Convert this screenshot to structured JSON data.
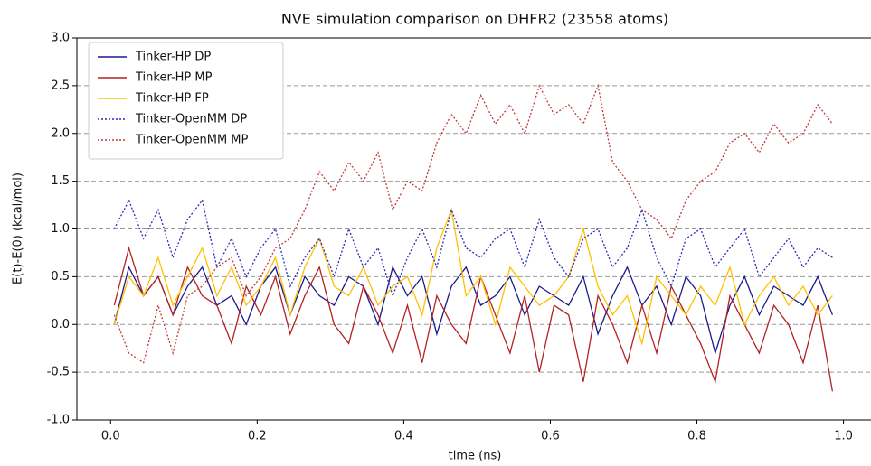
{
  "chart_data": {
    "type": "line",
    "title": "NVE simulation comparison on DHFR2 (23558 atoms)",
    "x_label": "time  (ns)",
    "y_label": "E(t)-E(0) (kcal/mol)",
    "x": [
      0.005,
      0.025,
      0.045,
      0.065,
      0.085,
      0.105,
      0.125,
      0.145,
      0.165,
      0.185,
      0.205,
      0.225,
      0.245,
      0.265,
      0.285,
      0.305,
      0.325,
      0.345,
      0.365,
      0.385,
      0.405,
      0.425,
      0.445,
      0.465,
      0.485,
      0.505,
      0.525,
      0.545,
      0.565,
      0.585,
      0.605,
      0.625,
      0.645,
      0.665,
      0.685,
      0.705,
      0.725,
      0.745,
      0.765,
      0.785,
      0.805,
      0.825,
      0.845,
      0.865,
      0.885,
      0.905,
      0.925,
      0.945,
      0.965,
      0.985
    ],
    "series": [
      {
        "name": "Tinker-HP DP",
        "color": "#1a1a8c",
        "linestyle": "solid",
        "values": [
          0.0,
          0.6,
          0.3,
          0.5,
          0.1,
          0.4,
          0.6,
          0.2,
          0.3,
          0.0,
          0.4,
          0.6,
          0.1,
          0.5,
          0.3,
          0.2,
          0.5,
          0.4,
          0.0,
          0.6,
          0.3,
          0.5,
          -0.1,
          0.4,
          0.6,
          0.2,
          0.3,
          0.5,
          0.1,
          0.4,
          0.3,
          0.2,
          0.5,
          -0.1,
          0.3,
          0.6,
          0.2,
          0.4,
          0.0,
          0.5,
          0.3,
          -0.3,
          0.2,
          0.5,
          0.1,
          0.4,
          0.3,
          0.2,
          0.5,
          0.1
        ]
      },
      {
        "name": "Tinker-HP MP",
        "color": "#b22222",
        "linestyle": "solid",
        "values": [
          0.2,
          0.8,
          0.3,
          0.5,
          0.1,
          0.6,
          0.3,
          0.2,
          -0.2,
          0.4,
          0.1,
          0.5,
          -0.1,
          0.3,
          0.6,
          0.0,
          -0.2,
          0.4,
          0.1,
          -0.3,
          0.2,
          -0.4,
          0.3,
          0.0,
          -0.2,
          0.5,
          0.1,
          -0.3,
          0.3,
          -0.5,
          0.2,
          0.1,
          -0.6,
          0.3,
          0.0,
          -0.4,
          0.2,
          -0.3,
          0.4,
          0.1,
          -0.2,
          -0.6,
          0.3,
          0.0,
          -0.3,
          0.2,
          0.0,
          -0.4,
          0.2,
          -0.7
        ]
      },
      {
        "name": "Tinker-HP FP",
        "color": "#ffc000",
        "linestyle": "solid",
        "values": [
          0.0,
          0.5,
          0.3,
          0.7,
          0.2,
          0.5,
          0.8,
          0.3,
          0.6,
          0.2,
          0.4,
          0.7,
          0.1,
          0.6,
          0.9,
          0.4,
          0.3,
          0.6,
          0.2,
          0.4,
          0.5,
          0.1,
          0.8,
          1.2,
          0.3,
          0.5,
          0.0,
          0.6,
          0.4,
          0.2,
          0.3,
          0.5,
          1.0,
          0.4,
          0.1,
          0.3,
          -0.2,
          0.5,
          0.3,
          0.1,
          0.4,
          0.2,
          0.6,
          0.0,
          0.3,
          0.5,
          0.2,
          0.4,
          0.1,
          0.3
        ]
      },
      {
        "name": "Tinker-OpenMM DP",
        "color": "#2a2ab8",
        "linestyle": "dotted",
        "values": [
          1.0,
          1.3,
          0.9,
          1.2,
          0.7,
          1.1,
          1.3,
          0.6,
          0.9,
          0.5,
          0.8,
          1.0,
          0.4,
          0.7,
          0.9,
          0.5,
          1.0,
          0.6,
          0.8,
          0.3,
          0.7,
          1.0,
          0.6,
          1.2,
          0.8,
          0.7,
          0.9,
          1.0,
          0.6,
          1.1,
          0.7,
          0.5,
          0.9,
          1.0,
          0.6,
          0.8,
          1.2,
          0.7,
          0.4,
          0.9,
          1.0,
          0.6,
          0.8,
          1.0,
          0.5,
          0.7,
          0.9,
          0.6,
          0.8,
          0.7
        ]
      },
      {
        "name": "Tinker-OpenMM MP",
        "color": "#c0393b",
        "linestyle": "dotted",
        "values": [
          0.1,
          -0.3,
          -0.4,
          0.2,
          -0.3,
          0.3,
          0.4,
          0.6,
          0.7,
          0.3,
          0.5,
          0.8,
          0.9,
          1.2,
          1.6,
          1.4,
          1.7,
          1.5,
          1.8,
          1.2,
          1.5,
          1.4,
          1.9,
          2.2,
          2.0,
          2.4,
          2.1,
          2.3,
          2.0,
          2.5,
          2.2,
          2.3,
          2.1,
          2.5,
          1.7,
          1.5,
          1.2,
          1.1,
          0.9,
          1.3,
          1.5,
          1.6,
          1.9,
          2.0,
          1.8,
          2.1,
          1.9,
          2.0,
          2.3,
          2.1
        ]
      }
    ],
    "xlim": [
      -0.046,
      1.04
    ],
    "ylim": [
      -1.0,
      3.0
    ],
    "xticks": [
      {
        "value": 0,
        "label": "0.0"
      },
      {
        "value": 0.2,
        "label": "0.2"
      },
      {
        "value": 0.4,
        "label": "0.4"
      },
      {
        "value": 0.6,
        "label": "0.6"
      },
      {
        "value": 0.8,
        "label": "0.8"
      },
      {
        "value": 1,
        "label": "1.0"
      }
    ],
    "yticks": [
      {
        "value": -1,
        "label": "-1.0"
      },
      {
        "value": -0.5,
        "label": "-0.5"
      },
      {
        "value": 0,
        "label": "0.0"
      },
      {
        "value": 0.5,
        "label": "0.5"
      },
      {
        "value": 1,
        "label": "1.0"
      },
      {
        "value": 1.5,
        "label": "1.5"
      },
      {
        "value": 2,
        "label": "2.0"
      },
      {
        "value": 2.5,
        "label": "2.5"
      },
      {
        "value": 3,
        "label": "3.0"
      }
    ],
    "grid": true,
    "legend": "upper left"
  }
}
